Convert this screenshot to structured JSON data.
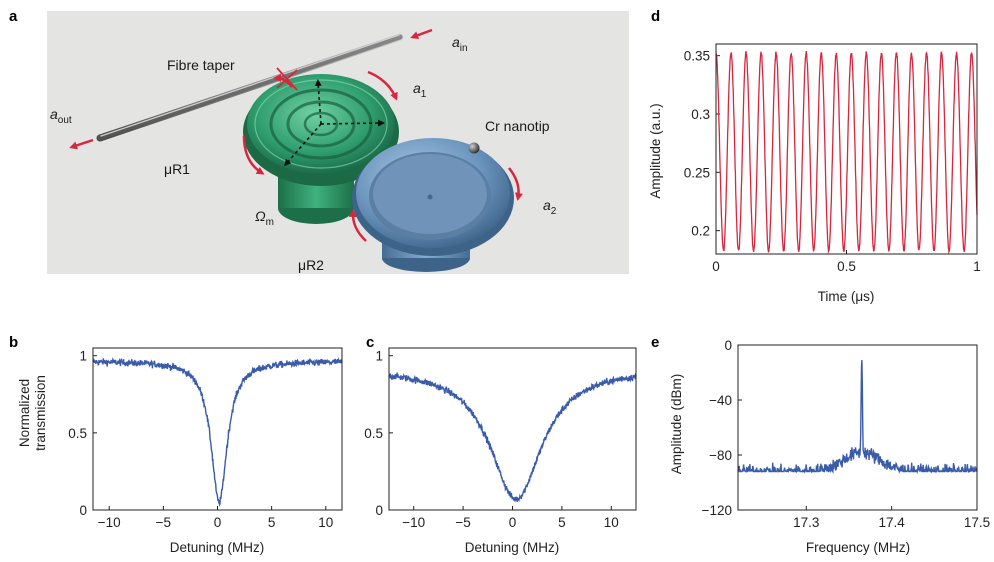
{
  "panel_labels": {
    "a": "a",
    "b": "b",
    "c": "c",
    "d": "d",
    "e": "e"
  },
  "schematic": {
    "fibre_taper": "Fibre taper",
    "a_in": "a",
    "a_in_sub": "in",
    "a_out": "a",
    "a_out_sub": "out",
    "a1": "a",
    "a1_sub": "1",
    "a2": "a",
    "a2_sub": "2",
    "cr_nanotip": "Cr nanotip",
    "uR1": "μR1",
    "uR2": "μR2",
    "omega_m": "Ω",
    "omega_m_sub": "m",
    "colors": {
      "background": "#e4e4e2",
      "resonator1": "#2e9d6e",
      "resonator2": "#6b95bd",
      "arrows": "#d7263d"
    }
  },
  "chart_data": [
    {
      "panel": "b",
      "type": "line",
      "xlabel": "Detuning (MHz)",
      "ylabel": "Normalized transmission",
      "ylabel_lines": [
        "Normalized",
        "transmission"
      ],
      "xlim": [
        -11.5,
        11.5
      ],
      "ylim": [
        0,
        1.05
      ],
      "xticks": [
        "−10",
        "−5",
        "0",
        "5",
        "10"
      ],
      "xtick_values": [
        -10,
        -5,
        0,
        5,
        10
      ],
      "yticks": [
        "0",
        "0.5",
        "1"
      ],
      "ytick_values": [
        0,
        0.5,
        1
      ],
      "series": [
        {
          "baseline": 0.965,
          "dip_center": 0.15,
          "dip_min": 0.05,
          "halfwidth_mhz": 0.9,
          "color": "#3a5ba9"
        }
      ]
    },
    {
      "panel": "c",
      "type": "line",
      "xlabel": "Detuning (MHz)",
      "ylabel": "",
      "xlim": [
        -12.5,
        12.5
      ],
      "ylim": [
        0,
        1.05
      ],
      "xticks": [
        "−10",
        "−5",
        "0",
        "5",
        "10"
      ],
      "xtick_values": [
        -10,
        -5,
        0,
        5,
        10
      ],
      "yticks": [
        "0",
        "0.5",
        "1"
      ],
      "ytick_values": [
        0,
        0.5,
        1
      ],
      "series": [
        {
          "baseline": 0.92,
          "dip_center": 0.35,
          "dip_min": 0.07,
          "halfwidth_mhz": 3.2,
          "color": "#3a5ba9"
        }
      ]
    },
    {
      "panel": "d",
      "type": "line",
      "xlabel": "Time (μs)",
      "ylabel": "Amplitude (a.u.)",
      "xlim": [
        0,
        1
      ],
      "ylim": [
        0.18,
        0.36
      ],
      "xticks": [
        "0",
        "0.5",
        "1"
      ],
      "xtick_values": [
        0,
        0.5,
        1
      ],
      "yticks": [
        "0.2",
        "0.25",
        "0.3",
        "0.35"
      ],
      "ytick_values": [
        0.2,
        0.25,
        0.3,
        0.35
      ],
      "series": [
        {
          "oscillations": 17.36,
          "max": 0.352,
          "min": 0.183,
          "color": "#d7263d"
        }
      ]
    },
    {
      "panel": "e",
      "type": "line",
      "xlabel": "Frequency (MHz)",
      "ylabel": "Amplitude (dBm)",
      "xlim": [
        17.22,
        17.5
      ],
      "ylim": [
        -120,
        0
      ],
      "xticks": [
        "17.3",
        "17.4",
        "17.5"
      ],
      "xtick_values": [
        17.3,
        17.4,
        17.5
      ],
      "yticks": [
        "0",
        "−40",
        "−80",
        "−120"
      ],
      "ytick_values": [
        0,
        -40,
        -80,
        -120
      ],
      "series": [
        {
          "noise_floor_dbm": -92,
          "peak_freq_mhz": 17.365,
          "peak_dbm": -10,
          "color": "#3a5ba9"
        }
      ]
    }
  ]
}
